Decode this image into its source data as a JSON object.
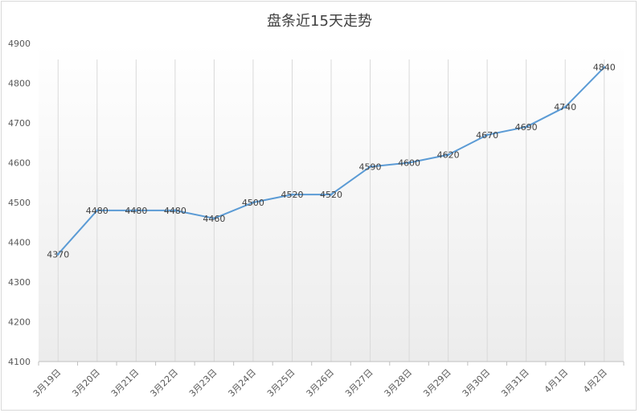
{
  "chart_data": {
    "type": "line",
    "title": "盘条近15天走势",
    "xlabel": "",
    "ylabel": "",
    "categories": [
      "3月19日",
      "3月20日",
      "3月21日",
      "3月22日",
      "3月23日",
      "3月24日",
      "3月25日",
      "3月26日",
      "3月27日",
      "3月28日",
      "3月29日",
      "3月30日",
      "3月31日",
      "4月1日",
      "4月2日"
    ],
    "series": [
      {
        "values": [
          4370,
          4480,
          4480,
          4480,
          4460,
          4500,
          4520,
          4520,
          4590,
          4600,
          4620,
          4670,
          4690,
          4740,
          4840
        ],
        "labels": [
          "4370",
          "4480",
          "4480",
          "4480",
          "4460",
          "4500",
          "4520",
          "4520",
          "4590",
          "4600",
          "4620",
          "4670",
          "4690",
          "4740",
          "4840"
        ],
        "color": "#5b9bd5"
      }
    ],
    "ylim": [
      4100,
      4900
    ],
    "yticks": [
      "4100",
      "4200",
      "4300",
      "4400",
      "4500",
      "4600",
      "4700",
      "4800",
      "4900"
    ],
    "grid": "vertical",
    "legend": "none"
  }
}
